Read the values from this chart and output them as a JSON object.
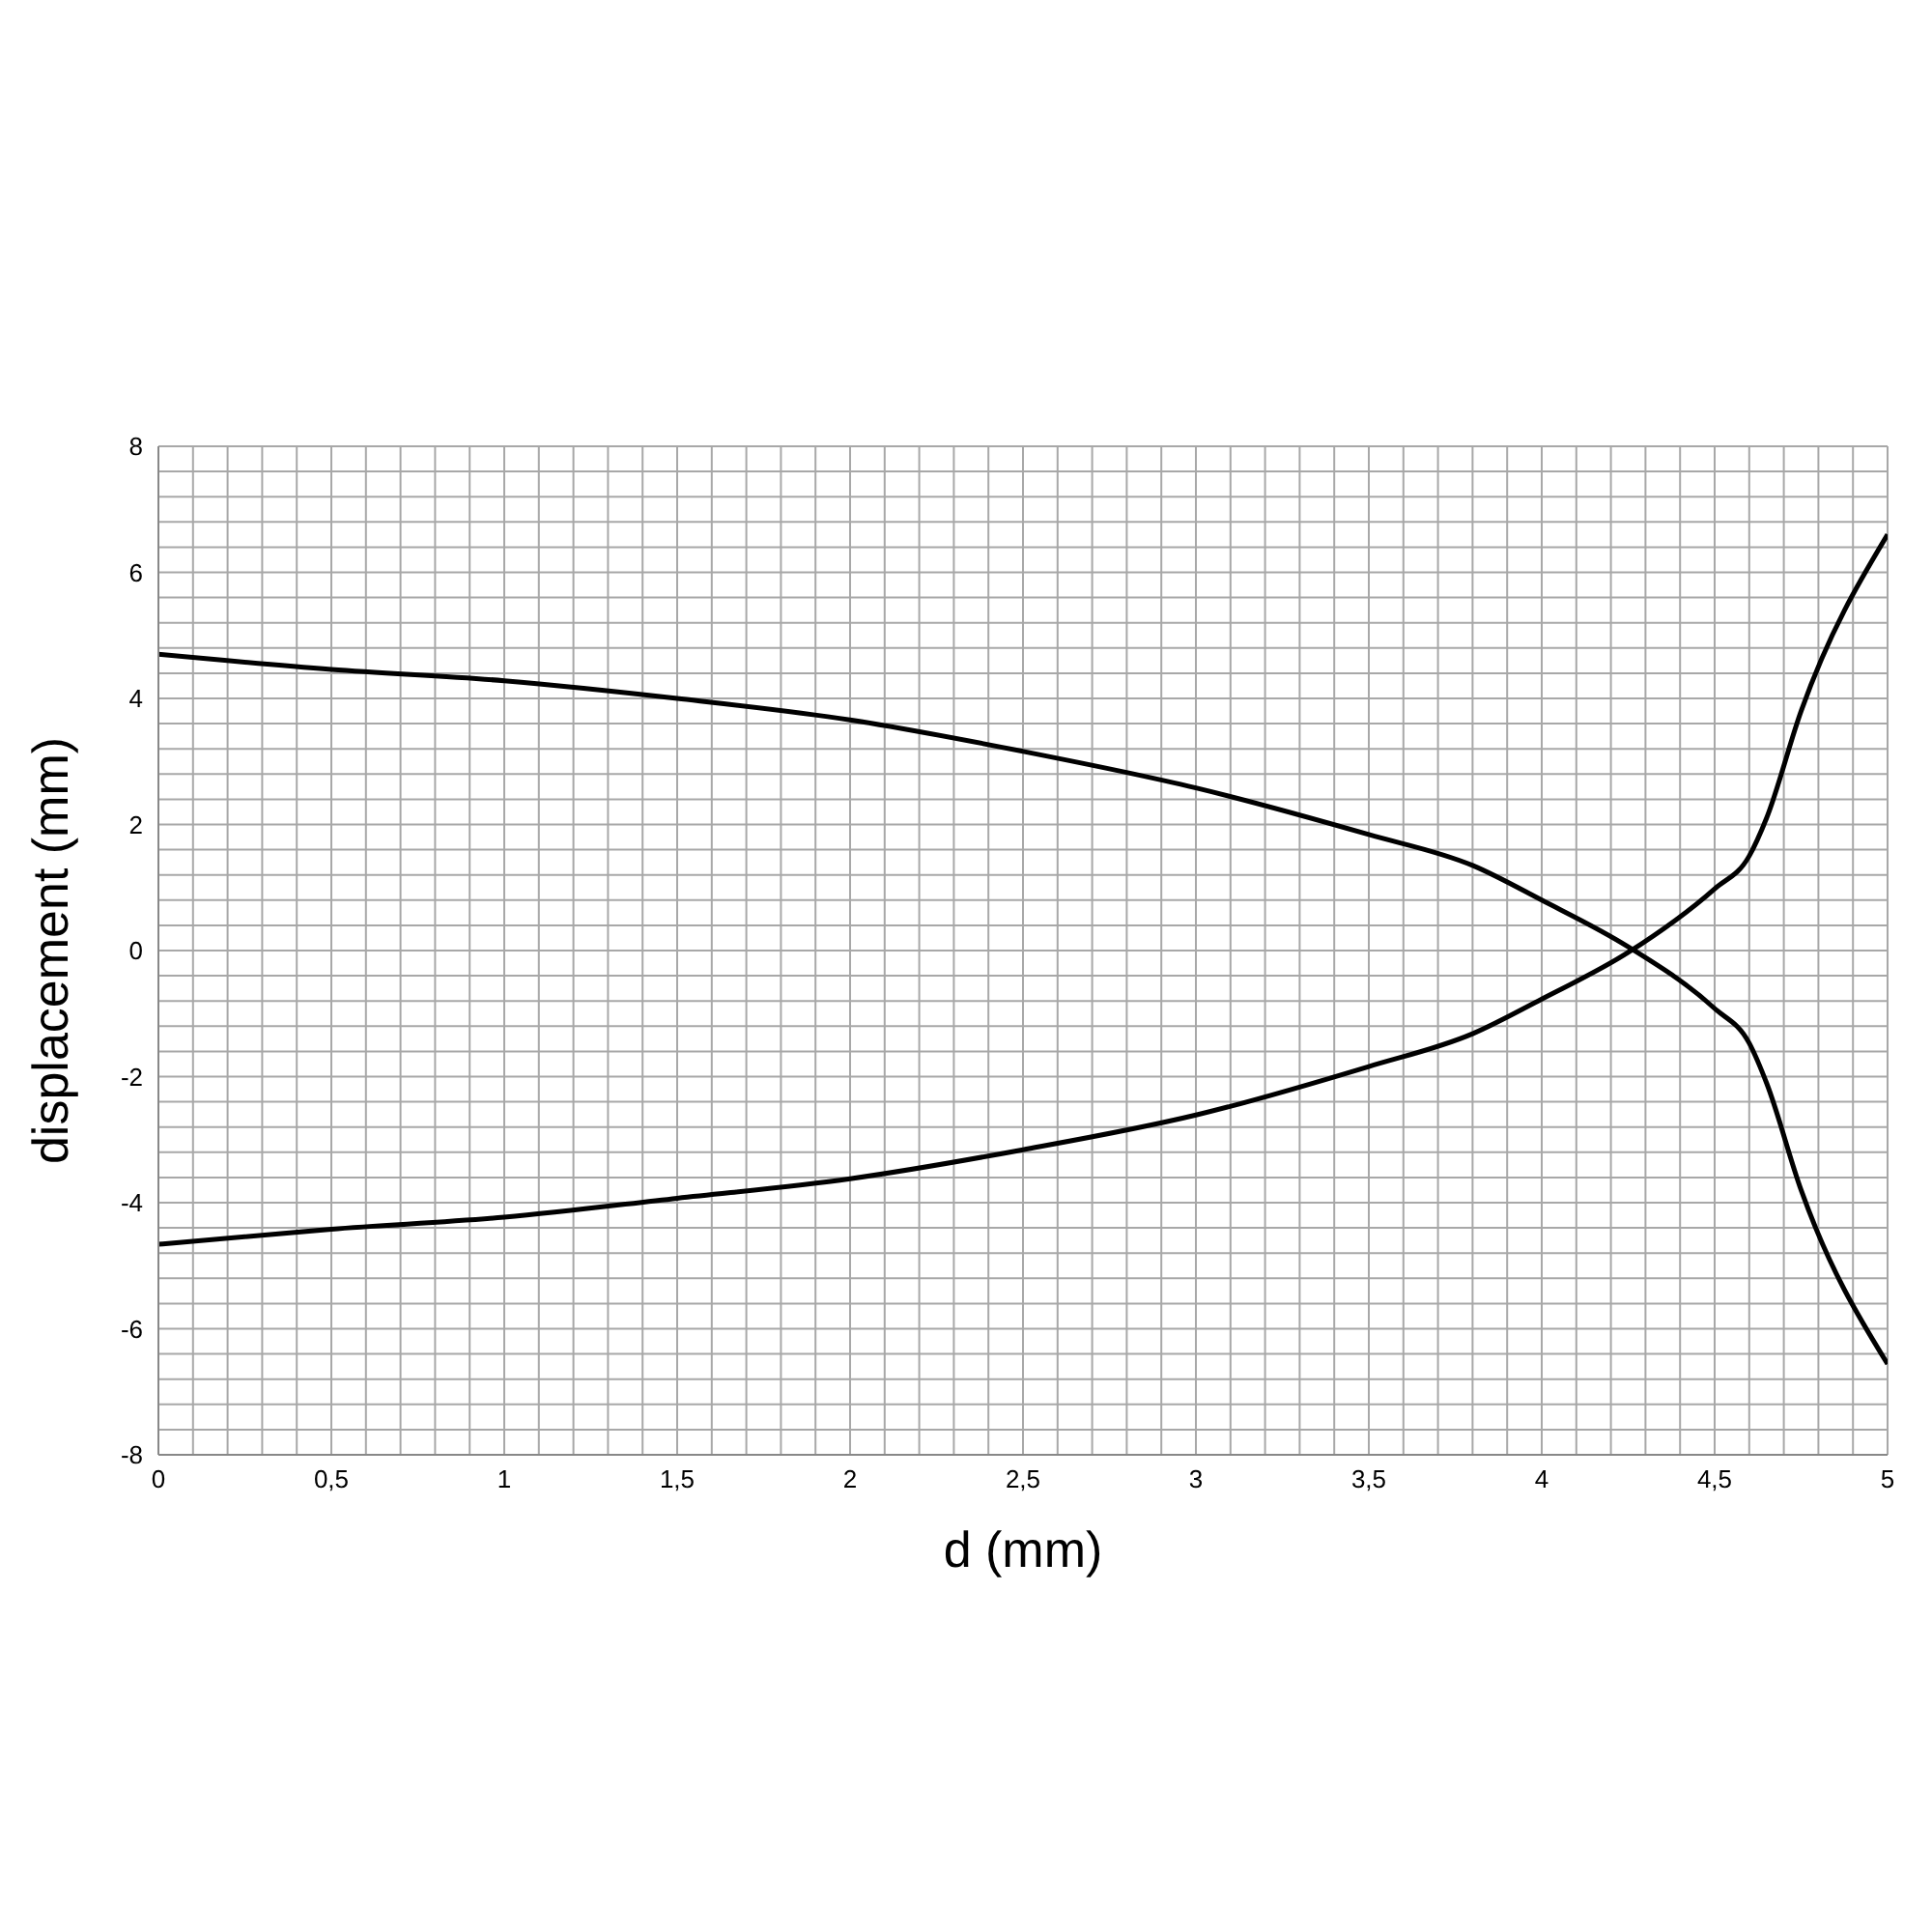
{
  "chart_data": {
    "type": "line",
    "xlabel": "d (mm)",
    "ylabel": "displacement (mm)",
    "series": [
      {
        "color": "#000000",
        "x": [
          0,
          0.5,
          1,
          1.5,
          2,
          2.5,
          3,
          3.5,
          3.8,
          4,
          4.25,
          4.5,
          4.6,
          4.65,
          4.75,
          5
        ],
        "values": [
          4.7,
          4.46,
          4.28,
          4.0,
          3.66,
          3.16,
          2.58,
          1.84,
          1.35,
          0.8,
          0.06,
          -0.92,
          -1.47,
          -2.1,
          -3.8,
          -6.56
        ]
      },
      {
        "color": "#000000",
        "x": [
          0,
          0.5,
          1,
          1.5,
          2,
          2.5,
          3,
          3.5,
          3.8,
          4,
          4.25,
          4.5,
          4.6,
          4.65,
          4.75,
          5
        ],
        "values": [
          -4.66,
          -4.42,
          -4.23,
          -3.93,
          -3.62,
          -3.16,
          -2.61,
          -1.84,
          -1.32,
          -0.77,
          -0.03,
          0.98,
          1.5,
          2.1,
          3.8,
          6.6
        ]
      }
    ],
    "xlim": [
      0,
      5
    ],
    "xticks": [
      0,
      {
        "value": 0.1,
        "label": null
      },
      {
        "value": 0.2,
        "label": null
      },
      {
        "value": 0.3,
        "label": null
      },
      {
        "value": 0.4,
        "label": null
      },
      {
        "value": 0.5,
        "label": "0,5"
      },
      {
        "value": 0.6,
        "label": null
      },
      {
        "value": 0.7,
        "label": null
      },
      {
        "value": 0.8,
        "label": null
      },
      {
        "value": 0.9,
        "label": null
      },
      1,
      {
        "value": 1.1,
        "label": null
      },
      {
        "value": 1.2,
        "label": null
      },
      {
        "value": 1.3,
        "label": null
      },
      {
        "value": 1.4,
        "label": null
      },
      {
        "value": 1.5,
        "label": "1,5"
      },
      {
        "value": 1.6,
        "label": null
      },
      {
        "value": 1.7,
        "label": null
      },
      {
        "value": 1.8,
        "label": null
      },
      {
        "value": 1.9,
        "label": null
      },
      2,
      {
        "value": 2.1,
        "label": null
      },
      {
        "value": 2.2,
        "label": null
      },
      {
        "value": 2.3,
        "label": null
      },
      {
        "value": 2.4,
        "label": null
      },
      {
        "value": 2.5,
        "label": "2,5"
      },
      {
        "value": 2.6,
        "label": null
      },
      {
        "value": 2.7,
        "label": null
      },
      {
        "value": 2.8,
        "label": null
      },
      {
        "value": 2.9,
        "label": null
      },
      3,
      {
        "value": 3.1,
        "label": null
      },
      {
        "value": 3.2,
        "label": null
      },
      {
        "value": 3.3,
        "label": null
      },
      {
        "value": 3.4,
        "label": null
      },
      {
        "value": 3.5,
        "label": "3,5"
      },
      {
        "value": 3.6,
        "label": null
      },
      {
        "value": 3.7,
        "label": null
      },
      {
        "value": 3.8,
        "label": null
      },
      {
        "value": 3.9,
        "label": null
      },
      4,
      {
        "value": 4.1,
        "label": null
      },
      {
        "value": 4.2,
        "label": null
      },
      {
        "value": 4.3,
        "label": null
      },
      {
        "value": 4.4,
        "label": null
      },
      {
        "value": 4.5,
        "label": "4,5"
      },
      {
        "value": 4.6,
        "label": null
      },
      {
        "value": 4.7,
        "label": null
      },
      {
        "value": 4.8,
        "label": null
      },
      {
        "value": 4.9,
        "label": null
      },
      5
    ],
    "ylim": [
      -8,
      8
    ],
    "yticks": [
      -8,
      {
        "value": -7.6,
        "label": null
      },
      {
        "value": -7.2,
        "label": null
      },
      {
        "value": -6.8,
        "label": null
      },
      {
        "value": -6.4,
        "label": null
      },
      -6,
      {
        "value": -5.6,
        "label": null
      },
      {
        "value": -5.2,
        "label": null
      },
      {
        "value": -4.8,
        "label": null
      },
      {
        "value": -4.4,
        "label": null
      },
      -4,
      {
        "value": -3.6,
        "label": null
      },
      {
        "value": -3.2,
        "label": null
      },
      {
        "value": -2.8,
        "label": null
      },
      {
        "value": -2.4,
        "label": null
      },
      -2,
      {
        "value": -1.6,
        "label": null
      },
      {
        "value": -1.2,
        "label": null
      },
      {
        "value": -0.8,
        "label": null
      },
      {
        "value": -0.4,
        "label": null
      },
      0,
      {
        "value": 0.4,
        "label": null
      },
      {
        "value": 0.8,
        "label": null
      },
      {
        "value": 1.2,
        "label": null
      },
      {
        "value": 1.6,
        "label": null
      },
      2,
      {
        "value": 2.4,
        "label": null
      },
      {
        "value": 2.8,
        "label": null
      },
      {
        "value": 3.2,
        "label": null
      },
      {
        "value": 3.6,
        "label": null
      },
      4,
      {
        "value": 4.4,
        "label": null
      },
      {
        "value": 4.8,
        "label": null
      },
      {
        "value": 5.2,
        "label": null
      },
      {
        "value": 5.6,
        "label": null
      },
      6,
      {
        "value": 6.4,
        "label": null
      },
      {
        "value": 6.8,
        "label": null
      },
      {
        "value": 7.2,
        "label": null
      },
      {
        "value": 7.6,
        "label": null
      },
      8
    ],
    "grid": true,
    "legend": false,
    "marker": "none",
    "line_style": "solid"
  }
}
